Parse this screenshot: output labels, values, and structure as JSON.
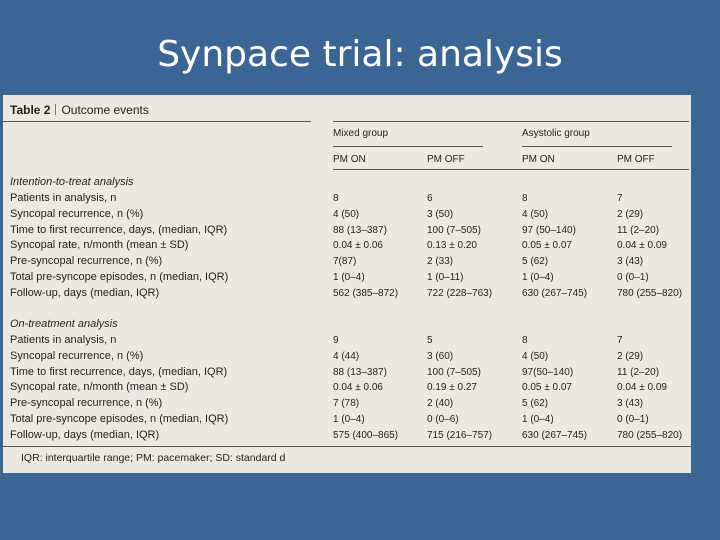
{
  "slide": {
    "title": "Synpace trial: analysis"
  },
  "table": {
    "caption_number": "Table 2",
    "caption_title": "Outcome events",
    "groups": [
      "Mixed group",
      "Asystolic group"
    ],
    "columns": [
      "PM ON",
      "PM OFF",
      "PM ON",
      "PM OFF"
    ],
    "sections": [
      {
        "title": "Intention-to-treat analysis",
        "rows": [
          {
            "label": "Patients in analysis, n",
            "values": [
              "8",
              "6",
              "8",
              "7"
            ]
          },
          {
            "label": "Syncopal recurrence, n (%)",
            "values": [
              "4 (50)",
              "3 (50)",
              "4 (50)",
              "2 (29)"
            ]
          },
          {
            "label": "Time to first recurrence, days, (median, IQR)",
            "values": [
              "88 (13–387)",
              "100 (7–505)",
              "97 (50–140)",
              "11 (2–20)"
            ]
          },
          {
            "label": "Syncopal rate, n/month (mean ± SD)",
            "values": [
              "0.04 ± 0.06",
              "0.13 ± 0.20",
              "0.05 ± 0.07",
              "0.04 ± 0.09"
            ]
          },
          {
            "label": "Pre-syncopal recurrence, n (%)",
            "values": [
              "7(87)",
              "2 (33)",
              "5 (62)",
              "3 (43)"
            ]
          },
          {
            "label": "Total pre-syncope episodes, n (median, IQR)",
            "values": [
              "1 (0–4)",
              "1 (0–11)",
              "1 (0–4)",
              "0 (0–1)"
            ]
          },
          {
            "label": "Follow-up, days (median, IQR)",
            "values": [
              "562 (385–872)",
              "722 (228–763)",
              "630 (267–745)",
              "780 (255–820)"
            ]
          }
        ]
      },
      {
        "title": "On-treatment analysis",
        "rows": [
          {
            "label": "Patients in analysis, n",
            "values": [
              "9",
              "5",
              "8",
              "7"
            ]
          },
          {
            "label": "Syncopal recurrence, n (%)",
            "values": [
              "4 (44)",
              "3 (60)",
              "4 (50)",
              "2 (29)"
            ]
          },
          {
            "label": "Time to first recurrence, days, (median, IQR)",
            "values": [
              "88 (13–387)",
              "100 (7–505)",
              "97(50–140)",
              "11 (2–20)"
            ]
          },
          {
            "label": "Syncopal rate, n/month (mean ± SD)",
            "values": [
              "0.04 ± 0.06",
              "0.19 ± 0.27",
              "0.05 ± 0.07",
              "0.04 ± 0.09"
            ]
          },
          {
            "label": "Pre-syncopal recurrence, n (%)",
            "values": [
              "7 (78)",
              "2 (40)",
              "5 (62)",
              "3 (43)"
            ]
          },
          {
            "label": "Total pre-syncope episodes, n (median, IQR)",
            "values": [
              "1 (0–4)",
              "0 (0–6)",
              "1 (0–4)",
              "0 (0–1)"
            ]
          },
          {
            "label": "Follow-up, days (median, IQR)",
            "values": [
              "575 (400–865)",
              "715 (216–757)",
              "630 (267–745)",
              "780 (255–820)"
            ]
          }
        ]
      }
    ],
    "footnote": "IQR: interquartile range; PM: pacemaker; SD: standard d"
  }
}
